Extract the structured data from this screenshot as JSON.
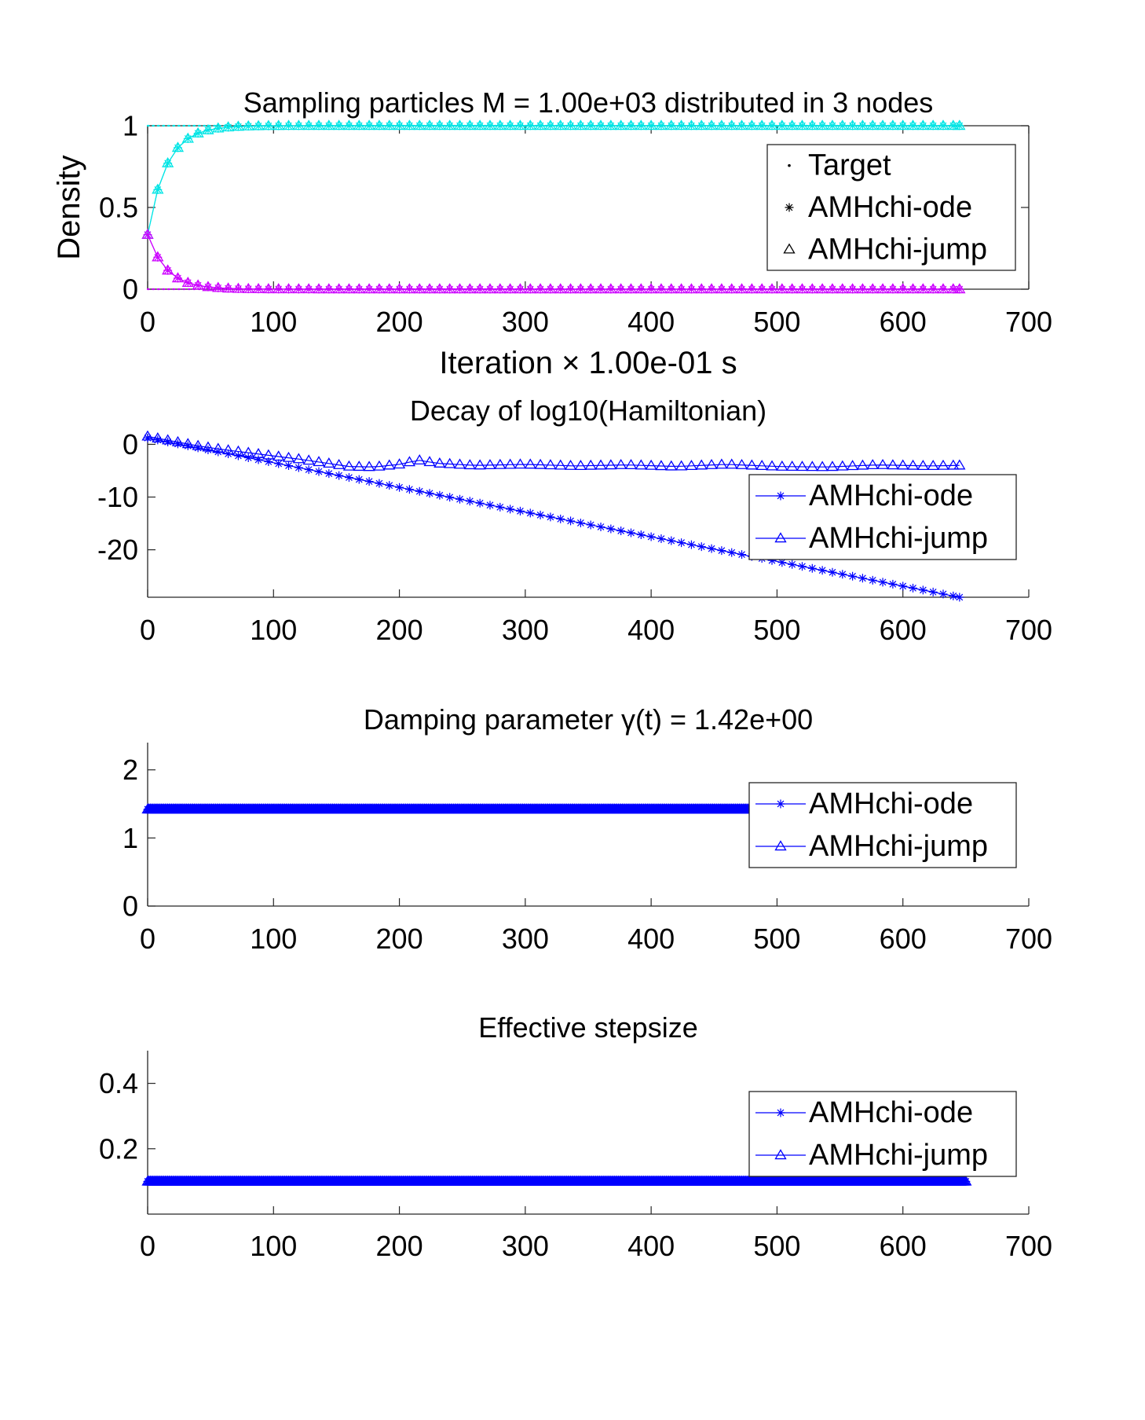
{
  "colors": {
    "cyan": "#00e5e5",
    "magenta": "#cc00ff",
    "blue": "#0000ff",
    "axis": "#262626",
    "target": "#000000"
  },
  "chart_data": [
    {
      "type": "line",
      "title": "Sampling particles M = 1.00e+03 distributed in 3 nodes",
      "xlabel": "Iteration × 1.00e-01 s",
      "ylabel": "Density",
      "xlim": [
        0,
        700
      ],
      "ylim": [
        0,
        1
      ],
      "x_ticks": [
        0,
        100,
        200,
        300,
        400,
        500,
        600,
        700
      ],
      "y_ticks": [
        0,
        0.5,
        1
      ],
      "y_tick_labels": [
        "0",
        "0.5",
        "1"
      ],
      "x_max": 645,
      "marker_step": 8,
      "legend_placement": "top-right",
      "legend": [
        {
          "label": "Target",
          "marker": "dot",
          "line": false
        },
        {
          "label": "AMHchi-ode",
          "marker": "star",
          "line": false
        },
        {
          "label": "AMHchi-jump",
          "marker": "triangle",
          "line": false
        }
      ],
      "target_lines": [
        {
          "value": 1,
          "color": "cyan"
        },
        {
          "value": 0,
          "color": "magenta"
        }
      ],
      "series": [
        {
          "color": "cyan",
          "start": 0.3333,
          "end": 1,
          "tau": 15,
          "marker": "triangle"
        },
        {
          "color": "cyan",
          "start": 0.3333,
          "end": 1,
          "tau": 15,
          "marker": "star"
        },
        {
          "color": "magenta",
          "start": 0.3333,
          "end": 0,
          "tau": 15,
          "marker": "triangle"
        },
        {
          "color": "magenta",
          "start": 0.3333,
          "end": 0,
          "tau": 15,
          "marker": "star"
        }
      ]
    },
    {
      "type": "line",
      "title": "Decay of log10(Hamiltonian)",
      "xlim": [
        0,
        700
      ],
      "ylim": [
        -29,
        2
      ],
      "x_ticks": [
        0,
        100,
        200,
        300,
        400,
        500,
        600,
        700
      ],
      "y_ticks": [
        -20,
        -10,
        0
      ],
      "y_tick_labels": [
        "-20",
        "-10",
        "0"
      ],
      "marker_step": 8,
      "legend_placement": "top-right",
      "legend": [
        {
          "label": "AMHchi-ode",
          "marker": "star",
          "line": true
        },
        {
          "label": "AMHchi-jump",
          "marker": "triangle",
          "line": true
        }
      ],
      "series": [
        {
          "color": "blue",
          "marker": "star",
          "x": [
            0,
            645
          ],
          "y": [
            1.2,
            -29
          ]
        },
        {
          "color": "blue",
          "marker": "triangle",
          "x": [
            0,
            20,
            40,
            60,
            80,
            100,
            120,
            140,
            160,
            180,
            200,
            215,
            230,
            260,
            300,
            340,
            380,
            420,
            460,
            500,
            540,
            580,
            620,
            645
          ],
          "y": [
            1.5,
            0.6,
            -0.3,
            -1.0,
            -1.6,
            -2.2,
            -2.8,
            -3.5,
            -4.2,
            -4.3,
            -3.8,
            -3.0,
            -3.6,
            -4.0,
            -3.8,
            -4.1,
            -3.9,
            -4.2,
            -3.8,
            -4.2,
            -4.3,
            -3.9,
            -4.1,
            -4.0
          ]
        }
      ]
    },
    {
      "type": "line",
      "title": "Damping parameter γ(t) = 1.42e+00",
      "xlim": [
        0,
        700
      ],
      "ylim": [
        0,
        2.4
      ],
      "x_ticks": [
        0,
        100,
        200,
        300,
        400,
        500,
        600,
        700
      ],
      "y_ticks": [
        0,
        1,
        2
      ],
      "y_tick_labels": [
        "0",
        "1",
        "2"
      ],
      "marker_step": 1,
      "legend_placement": "top-right",
      "legend": [
        {
          "label": "AMHchi-ode",
          "marker": "star",
          "line": true
        },
        {
          "label": "AMHchi-jump",
          "marker": "triangle",
          "line": true
        }
      ],
      "series": [
        {
          "color": "blue",
          "marker": "star",
          "x": [
            0,
            645
          ],
          "y": [
            1.42,
            1.42
          ]
        },
        {
          "color": "blue",
          "marker": "triangle",
          "x": [
            0,
            645
          ],
          "y": [
            1.42,
            1.42
          ]
        }
      ]
    },
    {
      "type": "line",
      "title": "Effective stepsize",
      "xlim": [
        0,
        700
      ],
      "ylim": [
        0,
        0.5
      ],
      "x_ticks": [
        0,
        100,
        200,
        300,
        400,
        500,
        600,
        700
      ],
      "y_ticks": [
        0.2,
        0.4
      ],
      "y_tick_labels": [
        "0.2",
        "0.4"
      ],
      "marker_step": 1,
      "legend_placement": "top-right",
      "legend": [
        {
          "label": "AMHchi-ode",
          "marker": "star",
          "line": true
        },
        {
          "label": "AMHchi-jump",
          "marker": "triangle",
          "line": true
        }
      ],
      "series": [
        {
          "color": "blue",
          "marker": "star",
          "x": [
            0,
            650
          ],
          "y": [
            0.1,
            0.1
          ]
        },
        {
          "color": "blue",
          "marker": "triangle",
          "x": [
            0,
            650
          ],
          "y": [
            0.1,
            0.1
          ]
        }
      ]
    }
  ]
}
